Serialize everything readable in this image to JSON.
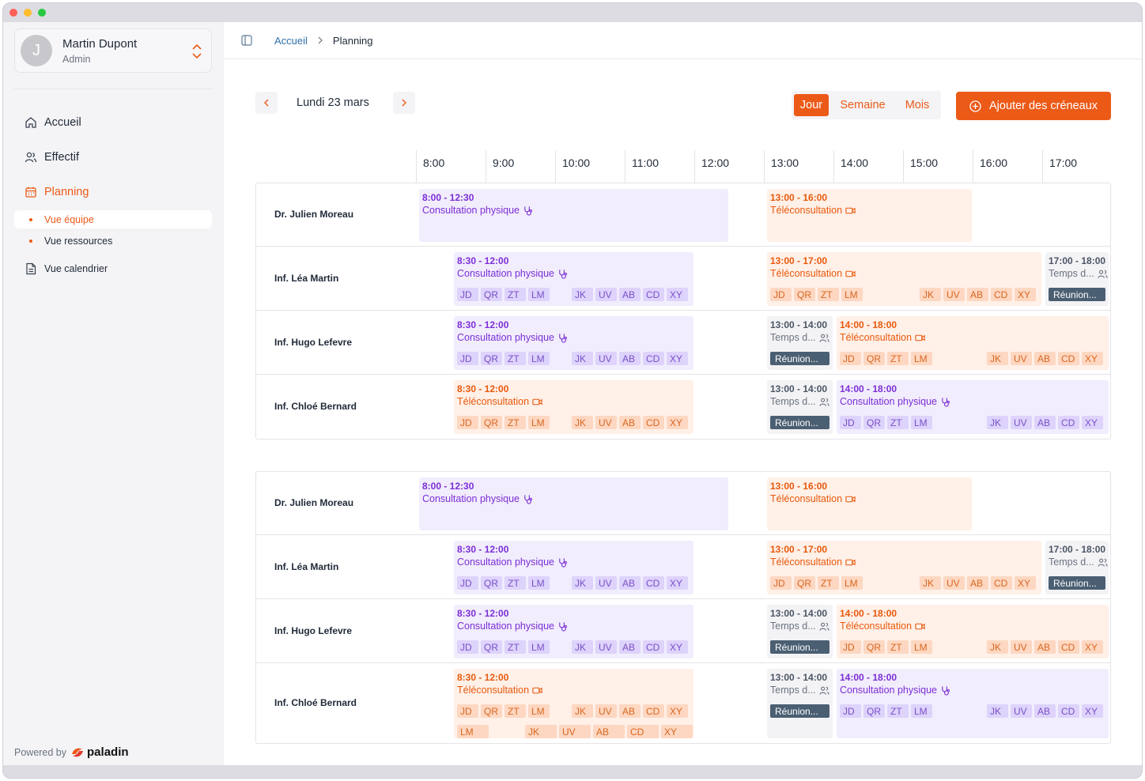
{
  "user": {
    "initial": "J",
    "name": "Martin Dupont",
    "role": "Admin"
  },
  "nav": {
    "home": "Accueil",
    "staff": "Effectif",
    "planning": "Planning",
    "team_view": "Vue équipe",
    "resources_view": "Vue ressources",
    "calendar_view": "Vue calendrier"
  },
  "footer": {
    "powered": "Powered by",
    "brand": "paladin"
  },
  "breadcrumb": {
    "home": "Accueil",
    "current": "Planning"
  },
  "toolbar": {
    "date": "Lundi 23 mars",
    "view_day": "Jour",
    "view_week": "Semaine",
    "view_month": "Mois",
    "add_slots": "Ajouter des créneaux"
  },
  "hours": [
    "8:00",
    "9:00",
    "10:00",
    "11:00",
    "12:00",
    "13:00",
    "14:00",
    "15:00",
    "16:00",
    "17:00"
  ],
  "groups": [
    {
      "rows": [
        {
          "name": "Dr. Julien Moreau",
          "blocks": [
            {
              "time": "8:00 - 12:30",
              "label": "Consultation physique",
              "color": "purple",
              "icon": "stethoscope-icon"
            },
            {
              "time": "13:00 - 16:00",
              "label": "Téléconsultation",
              "color": "orange",
              "icon": "video-icon"
            }
          ]
        },
        {
          "name": "Inf. Léa Martin",
          "blocks": [
            {
              "time": "8:30 - 12:00",
              "label": "Consultation physique",
              "color": "purple",
              "icon": "stethoscope-icon",
              "chips": [
                "JD",
                "QR",
                "ZT",
                "LM",
                "JK",
                "UV",
                "AB",
                "CD",
                "XY"
              ]
            },
            {
              "time": "13:00 - 17:00",
              "label": "Téléconsultation",
              "color": "orange",
              "icon": "video-icon",
              "chips": [
                "JD",
                "QR",
                "ZT",
                "LM",
                "JK",
                "UV",
                "AB",
                "CD",
                "XY"
              ]
            },
            {
              "time": "17:00 - 18:00",
              "label": "Temps d...",
              "color": "gray",
              "icon": "users-icon",
              "tag": "Réunion..."
            }
          ]
        },
        {
          "name": "Inf. Hugo Lefevre",
          "blocks": [
            {
              "time": "8:30 - 12:00",
              "label": "Consultation physique",
              "color": "purple",
              "icon": "stethoscope-icon",
              "chips": [
                "JD",
                "QR",
                "ZT",
                "LM",
                "JK",
                "UV",
                "AB",
                "CD",
                "XY"
              ]
            },
            {
              "time": "13:00 - 14:00",
              "label": "Temps d...",
              "color": "gray",
              "icon": "users-icon",
              "tag": "Réunion..."
            },
            {
              "time": "14:00 - 18:00",
              "label": "Téléconsultation",
              "color": "orange",
              "icon": "video-icon",
              "chips": [
                "JD",
                "QR",
                "ZT",
                "LM",
                "JK",
                "UV",
                "AB",
                "CD",
                "XY"
              ]
            }
          ]
        },
        {
          "name": "Inf. Chloé Bernard",
          "blocks": [
            {
              "time": "8:30 - 12:00",
              "label": "Téléconsultation",
              "color": "orange",
              "icon": "video-icon",
              "chips": [
                "JD",
                "QR",
                "ZT",
                "LM",
                "JK",
                "UV",
                "AB",
                "CD",
                "XY"
              ]
            },
            {
              "time": "13:00 - 14:00",
              "label": "Temps d...",
              "color": "gray",
              "icon": "users-icon",
              "tag": "Réunion..."
            },
            {
              "time": "14:00 - 18:00",
              "label": "Consultation physique",
              "color": "purple",
              "icon": "stethoscope-icon",
              "chips": [
                "JD",
                "QR",
                "ZT",
                "LM",
                "JK",
                "UV",
                "AB",
                "CD",
                "XY"
              ]
            }
          ]
        }
      ]
    },
    {
      "rows": [
        {
          "name": "Dr. Julien Moreau",
          "blocks": [
            {
              "time": "8:00 - 12:30",
              "label": "Consultation physique",
              "color": "purple",
              "icon": "stethoscope-icon"
            },
            {
              "time": "13:00 - 16:00",
              "label": "Téléconsultation",
              "color": "orange",
              "icon": "video-icon"
            }
          ]
        },
        {
          "name": "Inf. Léa Martin",
          "blocks": [
            {
              "time": "8:30 - 12:00",
              "label": "Consultation physique",
              "color": "purple",
              "icon": "stethoscope-icon",
              "chips": [
                "JD",
                "QR",
                "ZT",
                "LM",
                "JK",
                "UV",
                "AB",
                "CD",
                "XY"
              ]
            },
            {
              "time": "13:00 - 17:00",
              "label": "Téléconsultation",
              "color": "orange",
              "icon": "video-icon",
              "chips": [
                "JD",
                "QR",
                "ZT",
                "LM",
                "JK",
                "UV",
                "AB",
                "CD",
                "XY"
              ]
            },
            {
              "time": "17:00 - 18:00",
              "label": "Temps d...",
              "color": "gray",
              "icon": "users-icon",
              "tag": "Réunion..."
            }
          ]
        },
        {
          "name": "Inf. Hugo Lefevre",
          "blocks": [
            {
              "time": "8:30 - 12:00",
              "label": "Consultation physique",
              "color": "purple",
              "icon": "stethoscope-icon",
              "chips": [
                "JD",
                "QR",
                "ZT",
                "LM",
                "JK",
                "UV",
                "AB",
                "CD",
                "XY"
              ]
            },
            {
              "time": "13:00 - 14:00",
              "label": "Temps d...",
              "color": "gray",
              "icon": "users-icon",
              "tag": "Réunion..."
            },
            {
              "time": "14:00 - 18:00",
              "label": "Téléconsultation",
              "color": "orange",
              "icon": "video-icon",
              "chips": [
                "JD",
                "QR",
                "ZT",
                "LM",
                "JK",
                "UV",
                "AB",
                "CD",
                "XY"
              ]
            }
          ]
        },
        {
          "name": "Inf. Chloé Bernard",
          "blocks": [
            {
              "time": "8:30 - 12:00",
              "label": "Téléconsultation",
              "color": "orange",
              "icon": "video-icon",
              "chips": [
                "JD",
                "QR",
                "ZT",
                "LM",
                "JK",
                "UV",
                "AB",
                "CD",
                "XY"
              ],
              "chips2": [
                "LM",
                "JK",
                "UV",
                "AB",
                "CD",
                "XY"
              ]
            },
            {
              "time": "13:00 - 14:00",
              "label": "Temps d...",
              "color": "gray",
              "icon": "users-icon",
              "tag": "Réunion..."
            },
            {
              "time": "14:00 - 18:00",
              "label": "Consultation physique",
              "color": "purple",
              "icon": "stethoscope-icon",
              "chips": [
                "JD",
                "QR",
                "ZT",
                "LM",
                "JK",
                "UV",
                "AB",
                "CD",
                "XY"
              ]
            }
          ]
        }
      ]
    }
  ],
  "colors": {
    "accent": "#ec5a18",
    "purple": "#7c2ed6",
    "orange": "#e8590c",
    "meeting": "#4b5f72"
  }
}
